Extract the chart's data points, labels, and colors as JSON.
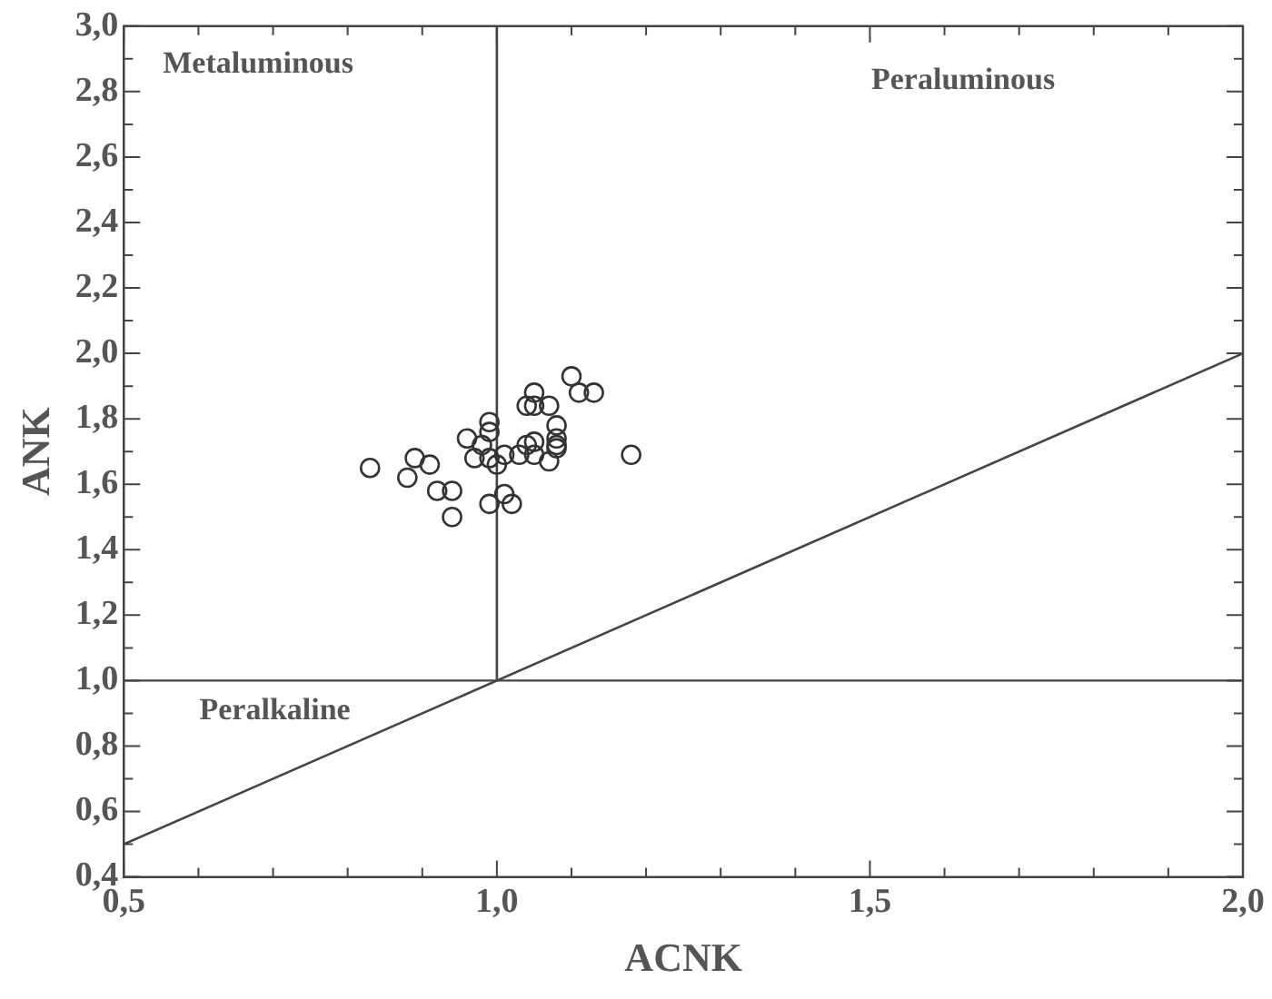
{
  "chart_data": {
    "type": "scatter",
    "xlabel": "ACNK",
    "ylabel": "ANK",
    "xlim": [
      0.5,
      2.0
    ],
    "ylim": [
      0.4,
      3.0
    ],
    "xticks": [
      {
        "value": 0.5,
        "label": "0,5"
      },
      {
        "value": 0.6,
        "label": null
      },
      {
        "value": 0.7,
        "label": null
      },
      {
        "value": 0.8,
        "label": null
      },
      {
        "value": 0.9,
        "label": null
      },
      {
        "value": 1.0,
        "label": "1,0"
      },
      {
        "value": 1.1,
        "label": null
      },
      {
        "value": 1.2,
        "label": null
      },
      {
        "value": 1.3,
        "label": null
      },
      {
        "value": 1.4,
        "label": null
      },
      {
        "value": 1.5,
        "label": "1,5"
      },
      {
        "value": 1.6,
        "label": null
      },
      {
        "value": 1.7,
        "label": null
      },
      {
        "value": 1.8,
        "label": null
      },
      {
        "value": 1.9,
        "label": null
      },
      {
        "value": 2.0,
        "label": "2,0"
      }
    ],
    "yticks": [
      {
        "value": 0.4,
        "label": "0,4"
      },
      {
        "value": 0.5,
        "label": null
      },
      {
        "value": 0.6,
        "label": "0,6"
      },
      {
        "value": 0.7,
        "label": null
      },
      {
        "value": 0.8,
        "label": "0,8"
      },
      {
        "value": 0.9,
        "label": null
      },
      {
        "value": 1.0,
        "label": "1,0"
      },
      {
        "value": 1.1,
        "label": null
      },
      {
        "value": 1.2,
        "label": "1,2"
      },
      {
        "value": 1.3,
        "label": null
      },
      {
        "value": 1.4,
        "label": "1,4"
      },
      {
        "value": 1.5,
        "label": null
      },
      {
        "value": 1.6,
        "label": "1,6"
      },
      {
        "value": 1.7,
        "label": null
      },
      {
        "value": 1.8,
        "label": "1,8"
      },
      {
        "value": 1.9,
        "label": null
      },
      {
        "value": 2.0,
        "label": "2,0"
      },
      {
        "value": 2.1,
        "label": null
      },
      {
        "value": 2.2,
        "label": "2,2"
      },
      {
        "value": 2.3,
        "label": null
      },
      {
        "value": 2.4,
        "label": "2,4"
      },
      {
        "value": 2.5,
        "label": null
      },
      {
        "value": 2.6,
        "label": "2,6"
      },
      {
        "value": 2.7,
        "label": null
      },
      {
        "value": 2.8,
        "label": "2,8"
      },
      {
        "value": 2.9,
        "label": null
      },
      {
        "value": 3.0,
        "label": "3,0"
      }
    ],
    "grid": false,
    "legend": false,
    "marker": "circle",
    "series": [
      {
        "color": "#333333",
        "x": [
          0.83,
          0.89,
          0.91,
          0.88,
          0.92,
          0.94,
          0.94,
          0.96,
          0.97,
          0.99,
          0.99,
          0.98,
          0.99,
          0.99,
          1.01,
          1.02,
          1.01,
          1.03,
          1.04,
          1.05,
          1.04,
          1.05,
          1.05,
          1.07,
          1.05,
          1.07,
          1.08,
          1.08,
          1.08,
          1.1,
          1.11,
          1.13,
          1.18,
          1.08,
          1.0
        ],
        "values": [
          1.65,
          1.68,
          1.66,
          1.62,
          1.58,
          1.58,
          1.5,
          1.74,
          1.68,
          1.79,
          1.76,
          1.72,
          1.68,
          1.54,
          1.57,
          1.54,
          1.69,
          1.69,
          1.72,
          1.69,
          1.84,
          1.84,
          1.88,
          1.84,
          1.73,
          1.67,
          1.78,
          1.74,
          1.71,
          1.93,
          1.88,
          1.88,
          1.69,
          1.72,
          1.66
        ]
      },
      {
        "type": "line",
        "color": "#444444",
        "marker": "none",
        "x": [
          1.0,
          1.0
        ],
        "values": [
          3.0,
          1.0
        ]
      },
      {
        "type": "line",
        "color": "#444444",
        "marker": "none",
        "x": [
          0.5,
          2.0
        ],
        "values": [
          0.5,
          2.0
        ]
      }
    ],
    "ref_lines": [
      {
        "axis": "y",
        "value": 1.0,
        "color": "#444444"
      }
    ],
    "annotations": [
      "Metaluminous",
      "Peraluminous",
      "Peralkaline"
    ]
  }
}
